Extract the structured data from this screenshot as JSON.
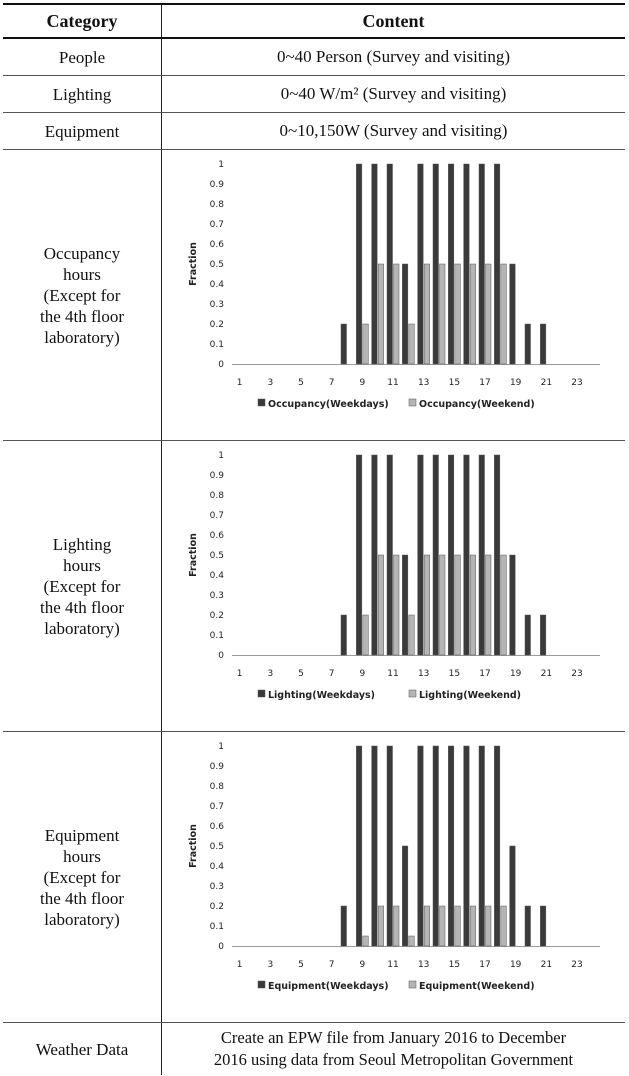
{
  "table": {
    "header": {
      "category": "Category",
      "content": "Content"
    },
    "rows": [
      {
        "category": "People",
        "content": "0~40  Person  (Survey  and  visiting)"
      },
      {
        "category": "Lighting",
        "content": "0~40  W/m²  (Survey  and  visiting)"
      },
      {
        "category": "Equipment",
        "content": "0~10,150W  (Survey  and  visiting)"
      }
    ],
    "chart_rows": [
      {
        "category_lines": [
          "Occupancy",
          "hours",
          "(Except for",
          "the 4th floor",
          "laboratory)"
        ]
      },
      {
        "category_lines": [
          "Lighting",
          "hours",
          "(Except for",
          "the 4th floor",
          "laboratory)"
        ]
      },
      {
        "category_lines": [
          "Equipment",
          "hours",
          "(Except for",
          "the 4th floor",
          "laboratory)"
        ]
      }
    ],
    "weather": {
      "category": "Weather  Data",
      "content_lines": [
        "Create an EPW file from January 2016 to December",
        "2016 using data from Seoul Metropolitan Government"
      ]
    }
  },
  "colors": {
    "weekday": "#3a3a3a",
    "weekend": "#b5b5b5",
    "axis": "#999999"
  },
  "chart_data": [
    {
      "type": "bar",
      "ylabel": "Fraction",
      "ylim": [
        0,
        1
      ],
      "yticks": [
        "0",
        "0.1",
        "0.2",
        "0.3",
        "0.4",
        "0.5",
        "0.6",
        "0.7",
        "0.8",
        "0.9",
        "1"
      ],
      "xtick_labels": [
        "1",
        "3",
        "5",
        "7",
        "9",
        "11",
        "13",
        "15",
        "17",
        "19",
        "21",
        "23"
      ],
      "categories": [
        1,
        2,
        3,
        4,
        5,
        6,
        7,
        8,
        9,
        10,
        11,
        12,
        13,
        14,
        15,
        16,
        17,
        18,
        19,
        20,
        21,
        22,
        23,
        24
      ],
      "legend": "bottom",
      "series": [
        {
          "name": "Occupancy(Weekdays)",
          "values": [
            0,
            0,
            0,
            0,
            0,
            0,
            0,
            0.2,
            1,
            1,
            1,
            0.5,
            1,
            1,
            1,
            1,
            1,
            1,
            0.5,
            0.2,
            0.2,
            0,
            0,
            0
          ]
        },
        {
          "name": "Occupancy(Weekend)",
          "values": [
            0,
            0,
            0,
            0,
            0,
            0,
            0,
            0,
            0.2,
            0.5,
            0.5,
            0.2,
            0.5,
            0.5,
            0.5,
            0.5,
            0.5,
            0.5,
            0,
            0,
            0,
            0,
            0,
            0
          ]
        }
      ]
    },
    {
      "type": "bar",
      "ylabel": "Fraction",
      "ylim": [
        0,
        1
      ],
      "yticks": [
        "0",
        "0.1",
        "0.2",
        "0.3",
        "0.4",
        "0.5",
        "0.6",
        "0.7",
        "0.8",
        "0.9",
        "1"
      ],
      "xtick_labels": [
        "1",
        "3",
        "5",
        "7",
        "9",
        "11",
        "13",
        "15",
        "17",
        "19",
        "21",
        "23"
      ],
      "categories": [
        1,
        2,
        3,
        4,
        5,
        6,
        7,
        8,
        9,
        10,
        11,
        12,
        13,
        14,
        15,
        16,
        17,
        18,
        19,
        20,
        21,
        22,
        23,
        24
      ],
      "legend": "bottom",
      "series": [
        {
          "name": "Lighting(Weekdays)",
          "values": [
            0,
            0,
            0,
            0,
            0,
            0,
            0,
            0.2,
            1,
            1,
            1,
            0.5,
            1,
            1,
            1,
            1,
            1,
            1,
            0.5,
            0.2,
            0.2,
            0,
            0,
            0
          ]
        },
        {
          "name": "Lighting(Weekend)",
          "values": [
            0,
            0,
            0,
            0,
            0,
            0,
            0,
            0,
            0.2,
            0.5,
            0.5,
            0.2,
            0.5,
            0.5,
            0.5,
            0.5,
            0.5,
            0.5,
            0,
            0,
            0,
            0,
            0,
            0
          ]
        }
      ]
    },
    {
      "type": "bar",
      "ylabel": "Fraction",
      "ylim": [
        0,
        1
      ],
      "yticks": [
        "0",
        "0.1",
        "0.2",
        "0.3",
        "0.4",
        "0.5",
        "0.6",
        "0.7",
        "0.8",
        "0.9",
        "1"
      ],
      "xtick_labels": [
        "1",
        "3",
        "5",
        "7",
        "9",
        "11",
        "13",
        "15",
        "17",
        "19",
        "21",
        "23"
      ],
      "categories": [
        1,
        2,
        3,
        4,
        5,
        6,
        7,
        8,
        9,
        10,
        11,
        12,
        13,
        14,
        15,
        16,
        17,
        18,
        19,
        20,
        21,
        22,
        23,
        24
      ],
      "legend": "bottom",
      "series": [
        {
          "name": "Equipment(Weekdays)",
          "values": [
            0,
            0,
            0,
            0,
            0,
            0,
            0,
            0.2,
            1,
            1,
            1,
            0.5,
            1,
            1,
            1,
            1,
            1,
            1,
            0.5,
            0.2,
            0.2,
            0,
            0,
            0
          ]
        },
        {
          "name": "Equipment(Weekend)",
          "values": [
            0,
            0,
            0,
            0,
            0,
            0,
            0,
            0,
            0.05,
            0.2,
            0.2,
            0.05,
            0.2,
            0.2,
            0.2,
            0.2,
            0.2,
            0.2,
            0,
            0,
            0,
            0,
            0,
            0
          ]
        }
      ]
    }
  ]
}
